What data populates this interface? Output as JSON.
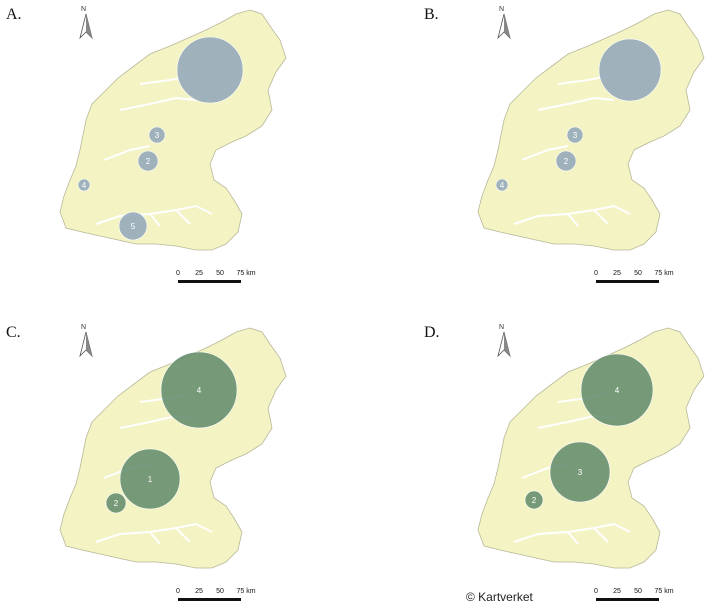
{
  "panels": [
    {
      "letter": "A.",
      "region_color": "#555555",
      "circles": [
        {
          "label": "",
          "fill": "#8fa5b8"
        },
        {
          "label": "3",
          "fill": "#8fa5b8"
        },
        {
          "label": "2",
          "fill": "#8fa5b8"
        },
        {
          "label": "4",
          "fill": "#8fa5b8"
        },
        {
          "label": "5",
          "fill": "#8fa5b8"
        }
      ]
    },
    {
      "letter": "B.",
      "region_color": "#555555",
      "circles": [
        {
          "label": "",
          "fill": "#8fa5b8"
        },
        {
          "label": "3",
          "fill": "#8fa5b8"
        },
        {
          "label": "2",
          "fill": "#8fa5b8"
        },
        {
          "label": "4",
          "fill": "#8fa5b8"
        }
      ]
    },
    {
      "letter": "C.",
      "region_color": "#555555",
      "circles": [
        {
          "label": "4",
          "fill": "#5f8a6b"
        },
        {
          "label": "1",
          "fill": "#5f8a6b"
        },
        {
          "label": "2",
          "fill": "#5f8a6b"
        },
        {
          "label": "",
          "fill": "#5f8a6b"
        }
      ]
    },
    {
      "letter": "D.",
      "region_color": "#555555",
      "circles": [
        {
          "label": "4",
          "fill": "#5f8a6b"
        },
        {
          "label": "3",
          "fill": "#5f8a6b"
        },
        {
          "label": "2",
          "fill": "#5f8a6b"
        },
        {
          "label": "",
          "fill": "#5f8a6b"
        }
      ]
    }
  ],
  "scale_labels": [
    "0",
    "25",
    "50",
    "75 km"
  ],
  "north_label": "N",
  "copyright": "© Kartverket",
  "colors": {
    "land": "#f3f3c4",
    "land_edge": "#b8b89a",
    "blue_circle": "#8fa5b8",
    "green_circle": "#5f8a6b"
  }
}
